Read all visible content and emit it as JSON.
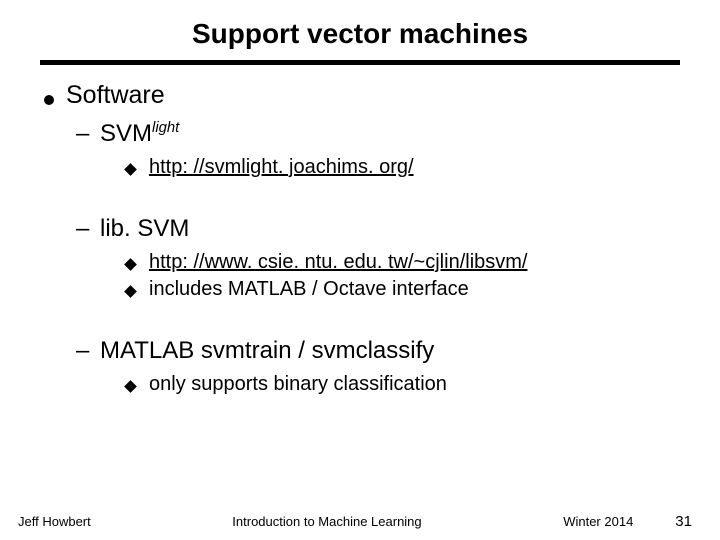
{
  "title": "Support vector machines",
  "main_heading": "Software",
  "items": {
    "svmlight": {
      "name_base": "SVM",
      "name_sup": "light",
      "url": "http: //svmlight. joachims. org/"
    },
    "libsvm": {
      "name": "lib. SVM",
      "url": "http: //www. csie. ntu. edu. tw/~cjlin/libsvm/",
      "note": "includes MATLAB / Octave interface"
    },
    "matlab": {
      "name": "MATLAB svmtrain / svmclassify",
      "note": "only supports binary classification"
    }
  },
  "footer": {
    "author": "Jeff Howbert",
    "course": "Introduction to Machine Learning",
    "term": "Winter 2014",
    "page": "31"
  },
  "colors": {
    "text": "#000000",
    "background": "#ffffff",
    "divider": "#000000",
    "bullet": "#000000"
  }
}
